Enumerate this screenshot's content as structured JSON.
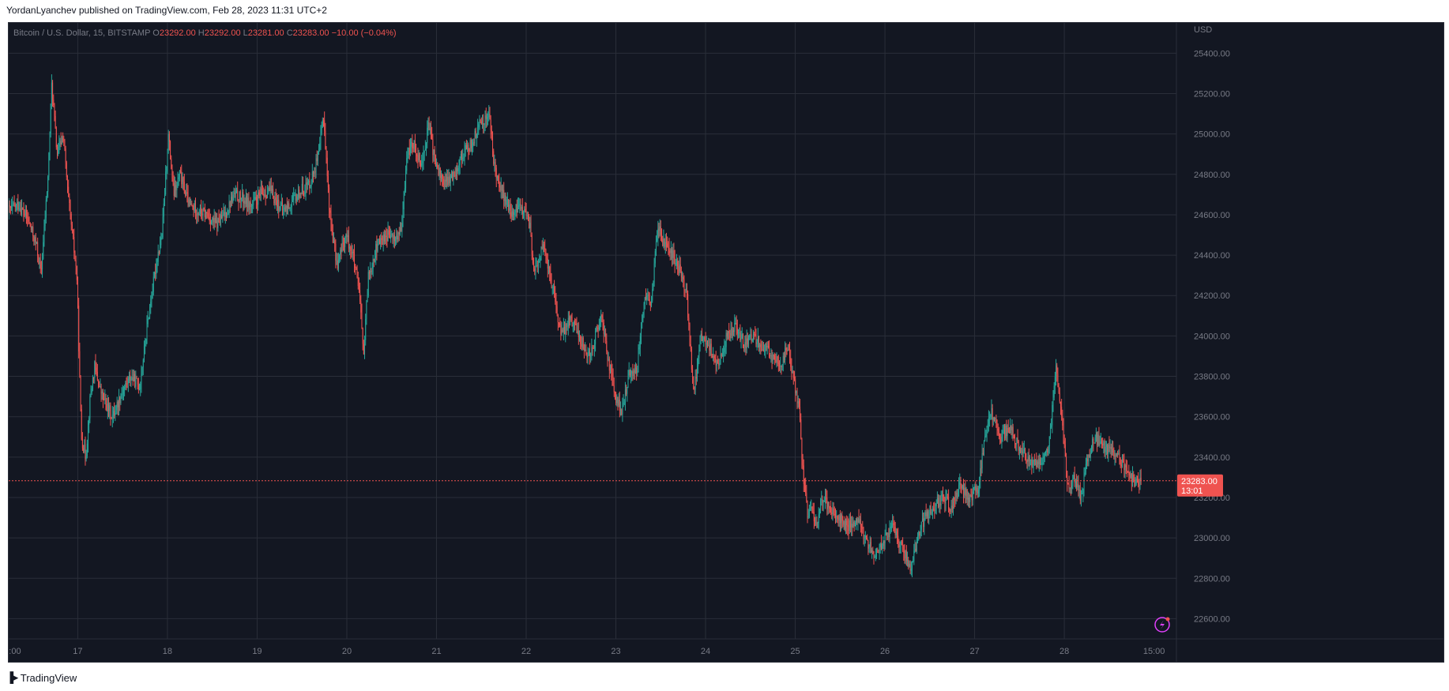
{
  "header": {
    "text": "YordanLyanchev published on TradingView.com, Feb 28, 2023 11:31 UTC+2"
  },
  "footer": {
    "logo_icon": "tradingview-logo-icon",
    "brand": "TradingView"
  },
  "colors": {
    "background": "#131722",
    "grid": "#2a2e39",
    "up": "#26a69a",
    "down": "#ef5350",
    "text": "#787b86",
    "price_label_bg": "#ef5350",
    "lightning": "#e040fb"
  },
  "chart_data": {
    "type": "candlestick",
    "title": "Bitcoin / U.S. Dollar, 15, BITSTAMP",
    "ohlc_legend": {
      "o_label": "O",
      "o": "23292.00",
      "h_label": "H",
      "h": "23292.00",
      "l_label": "L",
      "l": "23281.00",
      "c_label": "C",
      "c": "23283.00",
      "change": "−10.00 (−0.04%)"
    },
    "currency": "USD",
    "ylim": [
      22500,
      25550
    ],
    "y_ticks": [
      "22600.00",
      "22800.00",
      "23000.00",
      "23200.00",
      "23400.00",
      "23600.00",
      "23800.00",
      "24000.00",
      "24200.00",
      "24400.00",
      "24600.00",
      "24800.00",
      "25000.00",
      "25200.00",
      "25400.00"
    ],
    "y_tick_values": [
      22600,
      22800,
      23000,
      23200,
      23400,
      23600,
      23800,
      24000,
      24200,
      24400,
      24600,
      24800,
      25000,
      25200,
      25400
    ],
    "x_ticks": [
      ":00",
      "17",
      "18",
      "19",
      "20",
      "21",
      "22",
      "23",
      "24",
      "25",
      "26",
      "27",
      "28",
      "15:00"
    ],
    "x_tick_days": [
      16.0,
      16.7,
      17.7,
      18.7,
      19.7,
      20.7,
      21.7,
      22.7,
      23.7,
      24.7,
      25.7,
      26.7,
      27.7,
      28.7
    ],
    "x_range": [
      15.93,
      28.95
    ],
    "last_price": "23283.00",
    "last_price_value": 23283,
    "countdown": "13:01",
    "price_path": [
      [
        15.93,
        24620
      ],
      [
        16.05,
        24650
      ],
      [
        16.15,
        24580
      ],
      [
        16.25,
        24450
      ],
      [
        16.3,
        24300
      ],
      [
        16.38,
        24800
      ],
      [
        16.42,
        25250
      ],
      [
        16.48,
        24900
      ],
      [
        16.55,
        25000
      ],
      [
        16.6,
        24700
      ],
      [
        16.65,
        24500
      ],
      [
        16.7,
        24300
      ],
      [
        16.75,
        23500
      ],
      [
        16.8,
        23400
      ],
      [
        16.85,
        23700
      ],
      [
        16.9,
        23850
      ],
      [
        16.95,
        23750
      ],
      [
        17.0,
        23680
      ],
      [
        17.1,
        23600
      ],
      [
        17.2,
        23720
      ],
      [
        17.3,
        23800
      ],
      [
        17.4,
        23750
      ],
      [
        17.5,
        24100
      ],
      [
        17.6,
        24400
      ],
      [
        17.65,
        24500
      ],
      [
        17.72,
        25000
      ],
      [
        17.78,
        24700
      ],
      [
        17.85,
        24800
      ],
      [
        17.95,
        24650
      ],
      [
        18.05,
        24620
      ],
      [
        18.15,
        24600
      ],
      [
        18.25,
        24550
      ],
      [
        18.35,
        24600
      ],
      [
        18.45,
        24700
      ],
      [
        18.55,
        24680
      ],
      [
        18.65,
        24640
      ],
      [
        18.75,
        24700
      ],
      [
        18.85,
        24720
      ],
      [
        18.95,
        24650
      ],
      [
        19.0,
        24620
      ],
      [
        19.1,
        24660
      ],
      [
        19.2,
        24720
      ],
      [
        19.3,
        24760
      ],
      [
        19.4,
        24900
      ],
      [
        19.45,
        25100
      ],
      [
        19.52,
        24600
      ],
      [
        19.6,
        24350
      ],
      [
        19.7,
        24500
      ],
      [
        19.78,
        24400
      ],
      [
        19.85,
        24200
      ],
      [
        19.9,
        23900
      ],
      [
        19.95,
        24300
      ],
      [
        20.05,
        24450
      ],
      [
        20.15,
        24500
      ],
      [
        20.25,
        24480
      ],
      [
        20.32,
        24520
      ],
      [
        20.38,
        24900
      ],
      [
        20.45,
        24950
      ],
      [
        20.55,
        24850
      ],
      [
        20.62,
        25050
      ],
      [
        20.7,
        24850
      ],
      [
        20.8,
        24750
      ],
      [
        20.9,
        24800
      ],
      [
        21.0,
        24900
      ],
      [
        21.1,
        24950
      ],
      [
        21.2,
        25050
      ],
      [
        21.3,
        25100
      ],
      [
        21.35,
        24850
      ],
      [
        21.45,
        24700
      ],
      [
        21.55,
        24600
      ],
      [
        21.65,
        24650
      ],
      [
        21.75,
        24550
      ],
      [
        21.8,
        24300
      ],
      [
        21.9,
        24450
      ],
      [
        22.0,
        24250
      ],
      [
        22.1,
        24000
      ],
      [
        22.2,
        24100
      ],
      [
        22.3,
        24000
      ],
      [
        22.4,
        23900
      ],
      [
        22.45,
        23950
      ],
      [
        22.55,
        24100
      ],
      [
        22.62,
        23900
      ],
      [
        22.7,
        23700
      ],
      [
        22.78,
        23620
      ],
      [
        22.85,
        23800
      ],
      [
        22.95,
        23850
      ],
      [
        23.0,
        24100
      ],
      [
        23.05,
        24200
      ],
      [
        23.1,
        24150
      ],
      [
        23.18,
        24550
      ],
      [
        23.25,
        24450
      ],
      [
        23.35,
        24400
      ],
      [
        23.45,
        24300
      ],
      [
        23.5,
        24200
      ],
      [
        23.58,
        23700
      ],
      [
        23.65,
        24000
      ],
      [
        23.75,
        23950
      ],
      [
        23.85,
        23850
      ],
      [
        23.95,
        24000
      ],
      [
        24.05,
        24050
      ],
      [
        24.15,
        23950
      ],
      [
        24.25,
        24000
      ],
      [
        24.35,
        23950
      ],
      [
        24.45,
        23900
      ],
      [
        24.55,
        23850
      ],
      [
        24.62,
        23950
      ],
      [
        24.68,
        23800
      ],
      [
        24.75,
        23650
      ],
      [
        24.8,
        23300
      ],
      [
        24.85,
        23100
      ],
      [
        24.9,
        23150
      ],
      [
        24.95,
        23050
      ],
      [
        25.0,
        23200
      ],
      [
        25.1,
        23150
      ],
      [
        25.2,
        23100
      ],
      [
        25.3,
        23050
      ],
      [
        25.4,
        23100
      ],
      [
        25.5,
        23000
      ],
      [
        25.6,
        22900
      ],
      [
        25.7,
        23000
      ],
      [
        25.8,
        23050
      ],
      [
        25.9,
        22950
      ],
      [
        26.0,
        22850
      ],
      [
        26.05,
        22950
      ],
      [
        26.15,
        23100
      ],
      [
        26.25,
        23150
      ],
      [
        26.35,
        23200
      ],
      [
        26.45,
        23150
      ],
      [
        26.55,
        23250
      ],
      [
        26.65,
        23200
      ],
      [
        26.75,
        23250
      ],
      [
        26.82,
        23500
      ],
      [
        26.9,
        23620
      ],
      [
        27.0,
        23500
      ],
      [
        27.1,
        23550
      ],
      [
        27.2,
        23450
      ],
      [
        27.3,
        23400
      ],
      [
        27.4,
        23350
      ],
      [
        27.5,
        23400
      ],
      [
        27.55,
        23500
      ],
      [
        27.62,
        23850
      ],
      [
        27.68,
        23600
      ],
      [
        27.75,
        23250
      ],
      [
        27.82,
        23300
      ],
      [
        27.9,
        23200
      ],
      [
        27.95,
        23350
      ],
      [
        28.05,
        23500
      ],
      [
        28.15,
        23450
      ],
      [
        28.25,
        23420
      ],
      [
        28.35,
        23380
      ],
      [
        28.42,
        23320
      ],
      [
        28.5,
        23270
      ],
      [
        28.56,
        23283
      ]
    ]
  }
}
